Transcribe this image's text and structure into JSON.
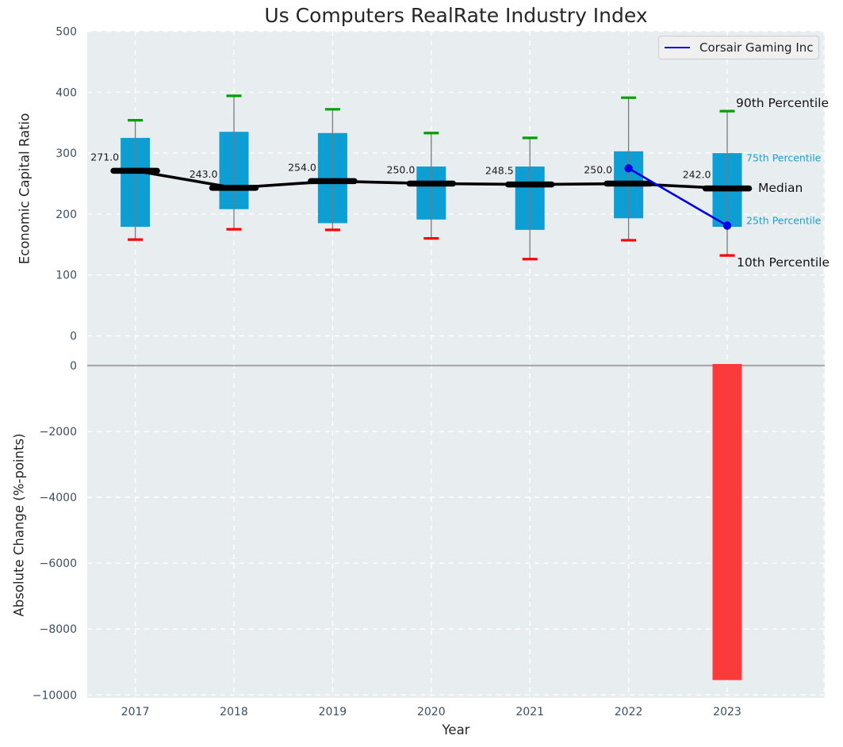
{
  "title": "Us Computers RealRate Industry Index",
  "legend": {
    "label": "Corsair Gaming Inc"
  },
  "chart_data": {
    "type": "boxplot-line-bar-combo",
    "xlabel": "Year",
    "categories": [
      "2017",
      "2018",
      "2019",
      "2020",
      "2021",
      "2022",
      "2023"
    ],
    "top_panel": {
      "ylabel": "Economic Capital Ratio",
      "ylim": [
        0,
        500
      ],
      "ytick_labels": [
        "500",
        "400",
        "300",
        "200",
        "100",
        "0"
      ],
      "ytick_values": [
        500,
        400,
        300,
        200,
        100,
        0
      ],
      "grid": "dashed-white",
      "boxes": [
        {
          "year": "2017",
          "p10": 158,
          "q1": 179,
          "median": 271.0,
          "q3": 325,
          "p90": 354,
          "median_label": "271.0"
        },
        {
          "year": "2018",
          "p10": 175,
          "q1": 208,
          "median": 243.0,
          "q3": 335,
          "p90": 394,
          "median_label": "243.0"
        },
        {
          "year": "2019",
          "p10": 174,
          "q1": 185,
          "median": 254.0,
          "q3": 333,
          "p90": 372,
          "median_label": "254.0"
        },
        {
          "year": "2020",
          "p10": 160,
          "q1": 191,
          "median": 250.0,
          "q3": 278,
          "p90": 333,
          "median_label": "250.0"
        },
        {
          "year": "2021",
          "p10": 126,
          "q1": 174,
          "median": 248.5,
          "q3": 278,
          "p90": 325,
          "median_label": "248.5"
        },
        {
          "year": "2022",
          "p10": 157,
          "q1": 193,
          "median": 250.0,
          "q3": 303,
          "p90": 391,
          "median_label": "250.0"
        },
        {
          "year": "2023",
          "p10": 132,
          "q1": 179,
          "median": 242.0,
          "q3": 300,
          "p90": 369,
          "median_label": "242.0"
        }
      ],
      "company_series": {
        "name": "Corsair Gaming Inc",
        "points": [
          {
            "year": "2022",
            "value": 275
          },
          {
            "year": "2023",
            "value": 181
          }
        ]
      },
      "percentile_annotations": [
        {
          "label": "90th Percentile",
          "anchor": "p90",
          "tone": "dark"
        },
        {
          "label": "75th Percentile",
          "anchor": "q3",
          "tone": "cyan"
        },
        {
          "label": "Median",
          "anchor": "median",
          "tone": "dark"
        },
        {
          "label": "25th Percentile",
          "anchor": "q1",
          "tone": "cyan"
        },
        {
          "label": "10th Percentile",
          "anchor": "p10",
          "tone": "dark"
        }
      ]
    },
    "bottom_panel": {
      "ylabel": "Absolute Change (%-points)",
      "ylim": [
        0,
        -10000
      ],
      "ytick_labels": [
        "0",
        "−2000",
        "−4000",
        "−6000",
        "−8000",
        "−10000"
      ],
      "ytick_values": [
        0,
        -2000,
        -4000,
        -6000,
        -8000,
        -10000
      ],
      "grid": "dashed-white",
      "bars": [
        {
          "year": "2023",
          "value": -9550
        }
      ]
    },
    "palette": {
      "box_fill": "#0d9ed3",
      "bar_negative": "#fb3b3b",
      "company_line": "#0000e0",
      "median_line": "#000000",
      "whisker": "#7a7a7a",
      "cap_high": "#00a000",
      "cap_low": "#ff0000",
      "panel_bg": "#e8edf0",
      "grid_line": "#ffffff",
      "tick_label": "#3d4f63",
      "text_dark": "#141414",
      "cyan_text": "#1a9fd2",
      "zero_line": "#aaaaaa"
    }
  }
}
